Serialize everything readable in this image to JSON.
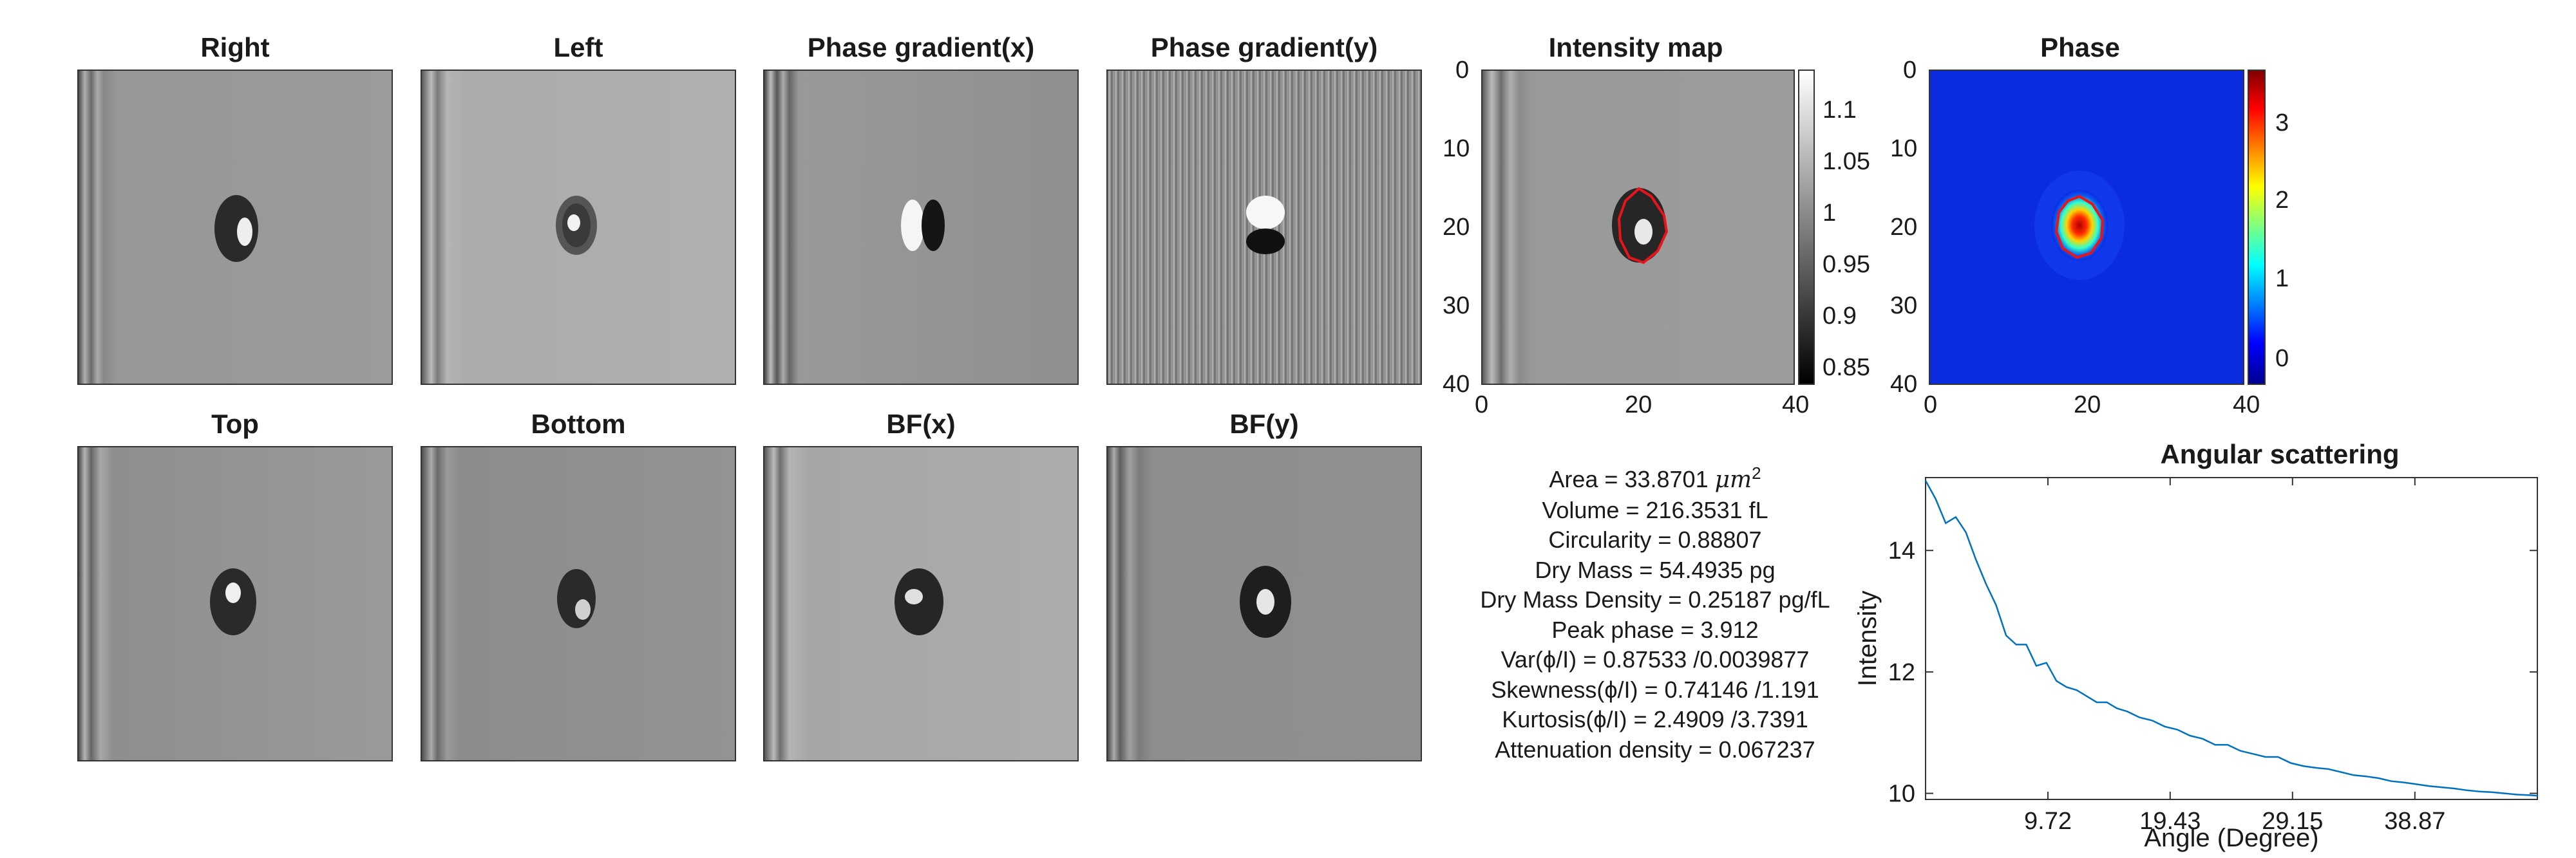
{
  "panels": {
    "right": {
      "title": "Right"
    },
    "left": {
      "title": "Left"
    },
    "pgx": {
      "title": "Phase gradient(x)"
    },
    "pgy": {
      "title": "Phase gradient(y)"
    },
    "top": {
      "title": "Top"
    },
    "bottom": {
      "title": "Bottom"
    },
    "bfx": {
      "title": "BF(x)"
    },
    "bfy": {
      "title": "BF(y)"
    }
  },
  "intensity": {
    "title": "Intensity map",
    "yticks": [
      "0",
      "10",
      "20",
      "30",
      "40"
    ],
    "xticks": [
      "0",
      "20",
      "40"
    ],
    "cbar_ticks": [
      "1.1",
      "1.05",
      "1",
      "0.95",
      "0.9",
      "0.85"
    ],
    "contour_color": "#e8141b"
  },
  "phase": {
    "title": "Phase",
    "yticks": [
      "0",
      "10",
      "20",
      "30",
      "40"
    ],
    "xticks": [
      "0",
      "20",
      "40"
    ],
    "cbar_ticks": [
      "3",
      "2",
      "1",
      "0"
    ],
    "contour_color": "#e8141b"
  },
  "metrics": {
    "area_prefix": "Area = 33.8701 ",
    "area_unit": "μm",
    "area_exp": "2",
    "volume": "Volume = 216.3531 fL",
    "circularity": "Circularity = 0.88807",
    "dry_mass": "Dry Mass = 54.4935 pg",
    "dry_mass_density": "Dry Mass Density = 0.25187 pg/fL",
    "peak_phase": "Peak phase = 3.912",
    "var": "Var(ϕ/I) = 0.87533 /0.0039877",
    "skewness": "Skewness(ϕ/I) = 0.74146 /1.191",
    "kurtosis": "Kurtosis(ϕ/I) = 2.4909 /3.7391",
    "attenuation": "Attenuation density = 0.067237"
  },
  "chart_data": {
    "type": "line",
    "title": "Angular scattering",
    "xlabel": "Angle (Degree)",
    "ylabel": "Intensity",
    "xlim": [
      0,
      48.6
    ],
    "ylim": [
      9.9,
      15.2
    ],
    "xticks": [
      "9.72",
      "19.43",
      "29.15",
      "38.87"
    ],
    "xtick_values": [
      9.72,
      19.43,
      29.15,
      38.87
    ],
    "yticks": [
      "10",
      "12",
      "14"
    ],
    "ytick_values": [
      10,
      12,
      14
    ],
    "line_color": "#0072bd",
    "x": [
      0.0,
      0.8,
      1.6,
      2.4,
      3.2,
      4.0,
      4.8,
      5.6,
      6.4,
      7.2,
      8.0,
      8.8,
      9.6,
      10.4,
      11.2,
      12.0,
      12.8,
      13.6,
      14.4,
      15.2,
      16.0,
      17.0,
      18.0,
      19.0,
      20.0,
      21.0,
      22.0,
      23.0,
      24.0,
      25.0,
      26.0,
      27.0,
      28.0,
      29.0,
      30.0,
      31.0,
      32.0,
      33.0,
      34.0,
      35.0,
      36.0,
      37.0,
      38.0,
      39.0,
      40.0,
      41.0,
      42.0,
      43.0,
      44.0,
      45.0,
      46.0,
      47.0,
      48.0,
      48.6
    ],
    "y": [
      15.15,
      14.85,
      14.45,
      14.55,
      14.3,
      13.85,
      13.45,
      13.1,
      12.6,
      12.45,
      12.45,
      12.1,
      12.15,
      11.85,
      11.75,
      11.7,
      11.6,
      11.5,
      11.5,
      11.4,
      11.35,
      11.25,
      11.2,
      11.1,
      11.05,
      10.95,
      10.9,
      10.8,
      10.8,
      10.7,
      10.65,
      10.6,
      10.6,
      10.5,
      10.45,
      10.42,
      10.4,
      10.35,
      10.3,
      10.28,
      10.25,
      10.2,
      10.18,
      10.15,
      10.12,
      10.1,
      10.08,
      10.05,
      10.03,
      10.02,
      10.0,
      9.98,
      9.97,
      9.96
    ]
  }
}
